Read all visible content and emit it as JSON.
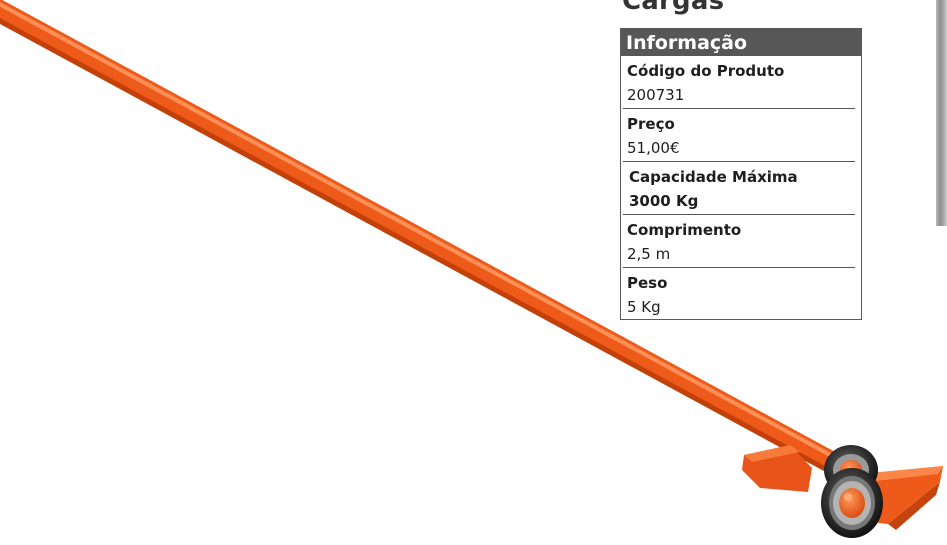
{
  "page": {
    "title": "Cargas"
  },
  "info": {
    "header": "Informação",
    "rows": [
      {
        "label": "Código do Produto",
        "value": "200731"
      },
      {
        "label": "Preço",
        "value": "51,00€"
      },
      {
        "label": "Capacidade Máxima",
        "value": "3000 Kg"
      },
      {
        "label": "Comprimento",
        "value": "2,5 m"
      },
      {
        "label": "Peso",
        "value": "5 Kg"
      }
    ]
  },
  "colors": {
    "bar": "#ee5a1a",
    "header_bg": "#575757",
    "border": "#5a5a5a"
  },
  "image": {
    "subject": "orange-lifting-bar-with-wheels"
  }
}
